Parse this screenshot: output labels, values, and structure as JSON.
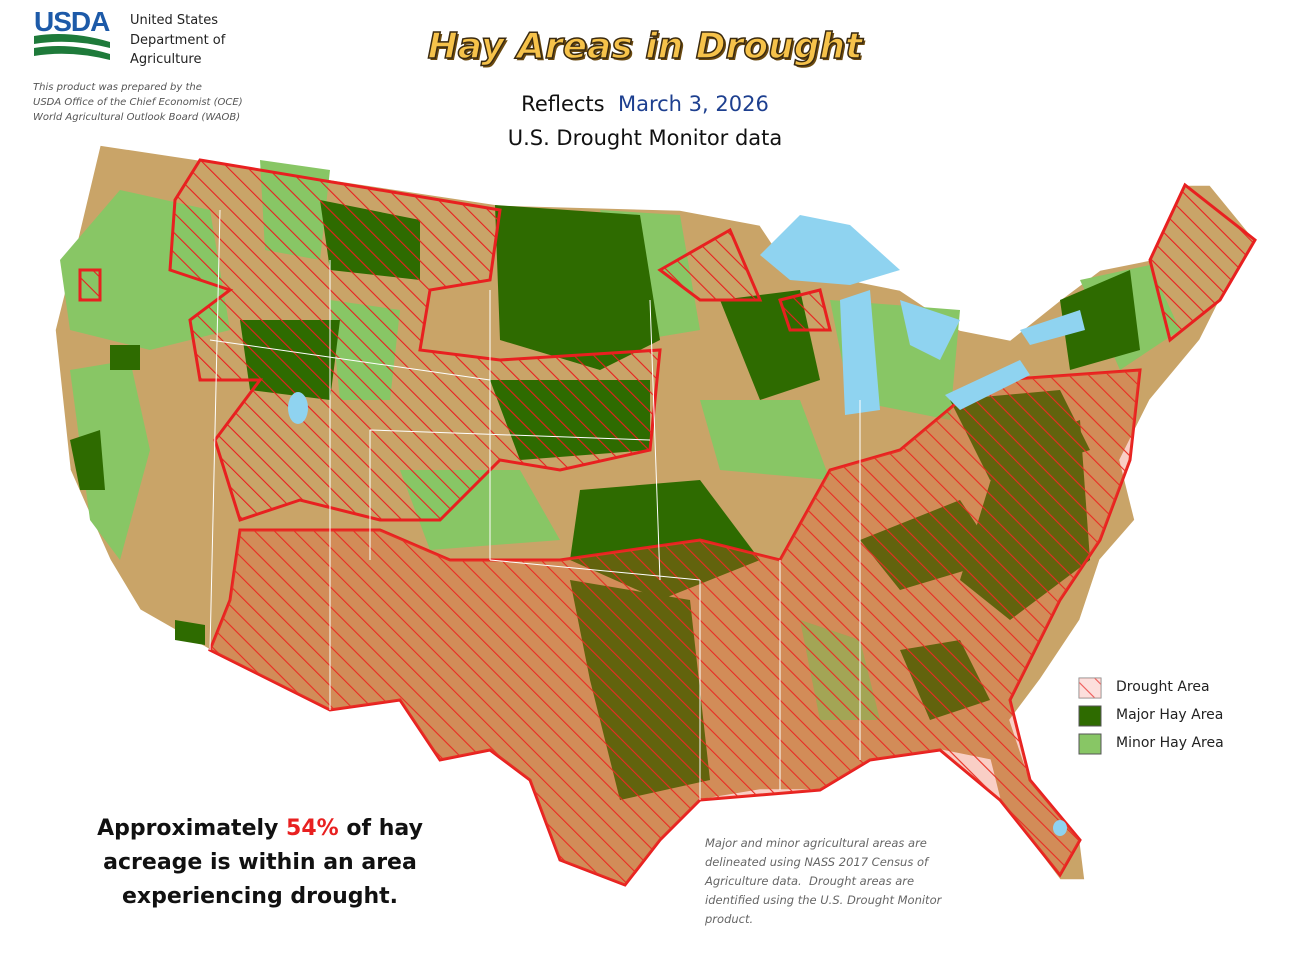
{
  "header": {
    "logo": "USDA",
    "agency": [
      "United States",
      "Department of",
      "Agriculture"
    ],
    "credit": [
      "This product was prepared by the",
      "USDA Office of the Chief Economist (OCE)",
      "World Agricultural Outlook Board (WAOB)"
    ]
  },
  "title": "Hay Areas in Drought",
  "subtitle": {
    "prefix": "Reflects",
    "date": "March 3, 2026",
    "source": "U.S. Drought Monitor data"
  },
  "legend": [
    "Drought Area",
    "Major Hay Area",
    "Minor Hay Area"
  ],
  "summary": {
    "before": "Approximately",
    "share": "54%",
    "after": "of hay",
    "line2": "acreage is within an area",
    "line3": "experiencing drought."
  },
  "footnote": [
    "Major and minor agricultural areas are",
    "delineated using NASS 2017 Census of",
    "Agriculture data.  Drought areas are",
    "identified using the U.S. Drought Monitor",
    "product."
  ]
}
